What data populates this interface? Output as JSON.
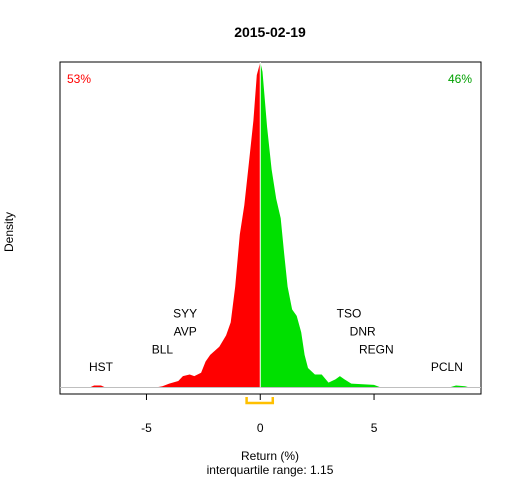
{
  "chart_data": {
    "type": "area",
    "title": "2015-02-19",
    "xlabel": "Return (%)",
    "ylabel": "Density",
    "subtitle": "interquartile range: 1.15",
    "xlim": [
      -8.8,
      9.7
    ],
    "ylim": [
      -0.02,
      1.0
    ],
    "x_ticks": [
      -5,
      0,
      5
    ],
    "x_tick_labels": [
      "-5",
      "0",
      "5"
    ],
    "negative_share": "53%",
    "positive_share": "46%",
    "colors": {
      "negative": "#ff0000",
      "positive": "#00e000",
      "iqr": "#ffc000",
      "axis": "#000000",
      "baseline": "#bfbfbf"
    },
    "iqr": [
      -0.6,
      0.55
    ],
    "density_points": [
      [
        -7.5,
        0.0
      ],
      [
        -7.3,
        0.006
      ],
      [
        -7.0,
        0.006
      ],
      [
        -6.8,
        0.0
      ],
      [
        -4.6,
        0.0
      ],
      [
        -4.3,
        0.004
      ],
      [
        -4.0,
        0.012
      ],
      [
        -3.6,
        0.02
      ],
      [
        -3.4,
        0.035
      ],
      [
        -3.1,
        0.04
      ],
      [
        -2.9,
        0.035
      ],
      [
        -2.6,
        0.045
      ],
      [
        -2.4,
        0.08
      ],
      [
        -2.2,
        0.1
      ],
      [
        -1.8,
        0.125
      ],
      [
        -1.5,
        0.16
      ],
      [
        -1.3,
        0.2
      ],
      [
        -1.1,
        0.31
      ],
      [
        -0.9,
        0.47
      ],
      [
        -0.7,
        0.56
      ],
      [
        -0.5,
        0.69
      ],
      [
        -0.3,
        0.82
      ],
      [
        -0.15,
        0.96
      ],
      [
        0.0,
        1.0
      ],
      [
        0.1,
        0.97
      ],
      [
        0.3,
        0.8
      ],
      [
        0.5,
        0.67
      ],
      [
        0.7,
        0.58
      ],
      [
        0.9,
        0.52
      ],
      [
        1.05,
        0.41
      ],
      [
        1.2,
        0.31
      ],
      [
        1.4,
        0.24
      ],
      [
        1.6,
        0.22
      ],
      [
        1.8,
        0.17
      ],
      [
        1.95,
        0.1
      ],
      [
        2.1,
        0.06
      ],
      [
        2.4,
        0.04
      ],
      [
        2.7,
        0.04
      ],
      [
        3.0,
        0.015
      ],
      [
        3.3,
        0.025
      ],
      [
        3.5,
        0.035
      ],
      [
        3.7,
        0.025
      ],
      [
        4.0,
        0.012
      ],
      [
        4.5,
        0.01
      ],
      [
        5.0,
        0.008
      ],
      [
        5.3,
        0.0
      ],
      [
        8.3,
        0.0
      ],
      [
        8.6,
        0.006
      ],
      [
        9.0,
        0.004
      ],
      [
        9.2,
        0.0
      ]
    ],
    "annotations": [
      {
        "text": "HST",
        "x": -7.0,
        "y": 0.05
      },
      {
        "text": "BLL",
        "x": -4.3,
        "y": 0.105
      },
      {
        "text": "AVP",
        "x": -3.3,
        "y": 0.16
      },
      {
        "text": "SYY",
        "x": -3.3,
        "y": 0.215
      },
      {
        "text": "TSO",
        "x": 3.9,
        "y": 0.215
      },
      {
        "text": "DNR",
        "x": 4.5,
        "y": 0.16
      },
      {
        "text": "REGN",
        "x": 5.1,
        "y": 0.105
      },
      {
        "text": "PCLN",
        "x": 8.2,
        "y": 0.05
      }
    ]
  }
}
